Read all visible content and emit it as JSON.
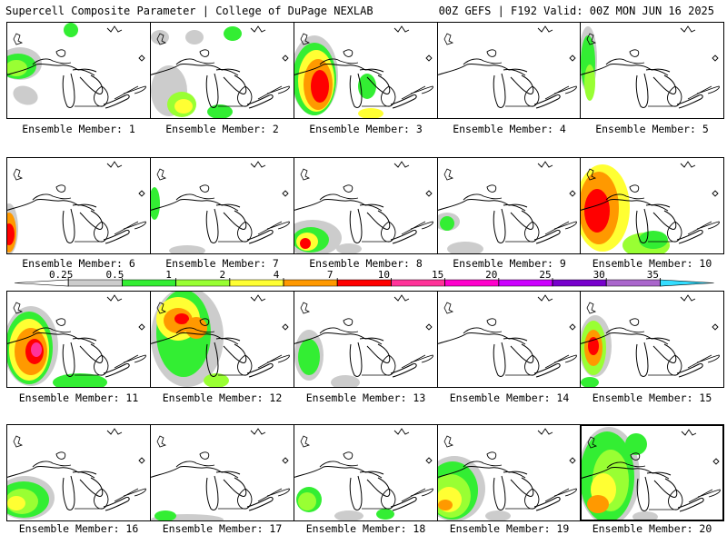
{
  "header": {
    "left": "Supercell Composite Parameter | College of DuPage NEXLAB",
    "right": "00Z GEFS | F192 Valid: 00Z MON JUN 16 2025"
  },
  "colorbar": {
    "labels": [
      "0.25",
      "0.5",
      "1",
      "2",
      "4",
      "7",
      "10",
      "15",
      "20",
      "25",
      "30",
      "35"
    ],
    "colors": [
      "#ffffff",
      "#cccccc",
      "#33ee33",
      "#99ff33",
      "#ffff33",
      "#ff9900",
      "#ff0000",
      "#ff3399",
      "#ff00cc",
      "#cc00ff",
      "#7700cc",
      "#aa66cc",
      "#33ddff"
    ]
  },
  "members": [
    {
      "label": "Ensemble Member: 1",
      "highlight": false
    },
    {
      "label": "Ensemble Member: 2",
      "highlight": false
    },
    {
      "label": "Ensemble Member: 3",
      "highlight": false
    },
    {
      "label": "Ensemble Member: 4",
      "highlight": false
    },
    {
      "label": "Ensemble Member: 5",
      "highlight": false
    },
    {
      "label": "Ensemble Member: 6",
      "highlight": false
    },
    {
      "label": "Ensemble Member: 7",
      "highlight": false
    },
    {
      "label": "Ensemble Member: 8",
      "highlight": false
    },
    {
      "label": "Ensemble Member: 9",
      "highlight": false
    },
    {
      "label": "Ensemble Member: 10",
      "highlight": false
    },
    {
      "label": "Ensemble Member: 11",
      "highlight": false
    },
    {
      "label": "Ensemble Member: 12",
      "highlight": false
    },
    {
      "label": "Ensemble Member: 13",
      "highlight": false
    },
    {
      "label": "Ensemble Member: 14",
      "highlight": false
    },
    {
      "label": "Ensemble Member: 15",
      "highlight": false
    },
    {
      "label": "Ensemble Member: 16",
      "highlight": false
    },
    {
      "label": "Ensemble Member: 17",
      "highlight": false
    },
    {
      "label": "Ensemble Member: 18",
      "highlight": false
    },
    {
      "label": "Ensemble Member: 19",
      "highlight": false
    },
    {
      "label": "Ensemble Member: 20",
      "highlight": true
    }
  ]
}
